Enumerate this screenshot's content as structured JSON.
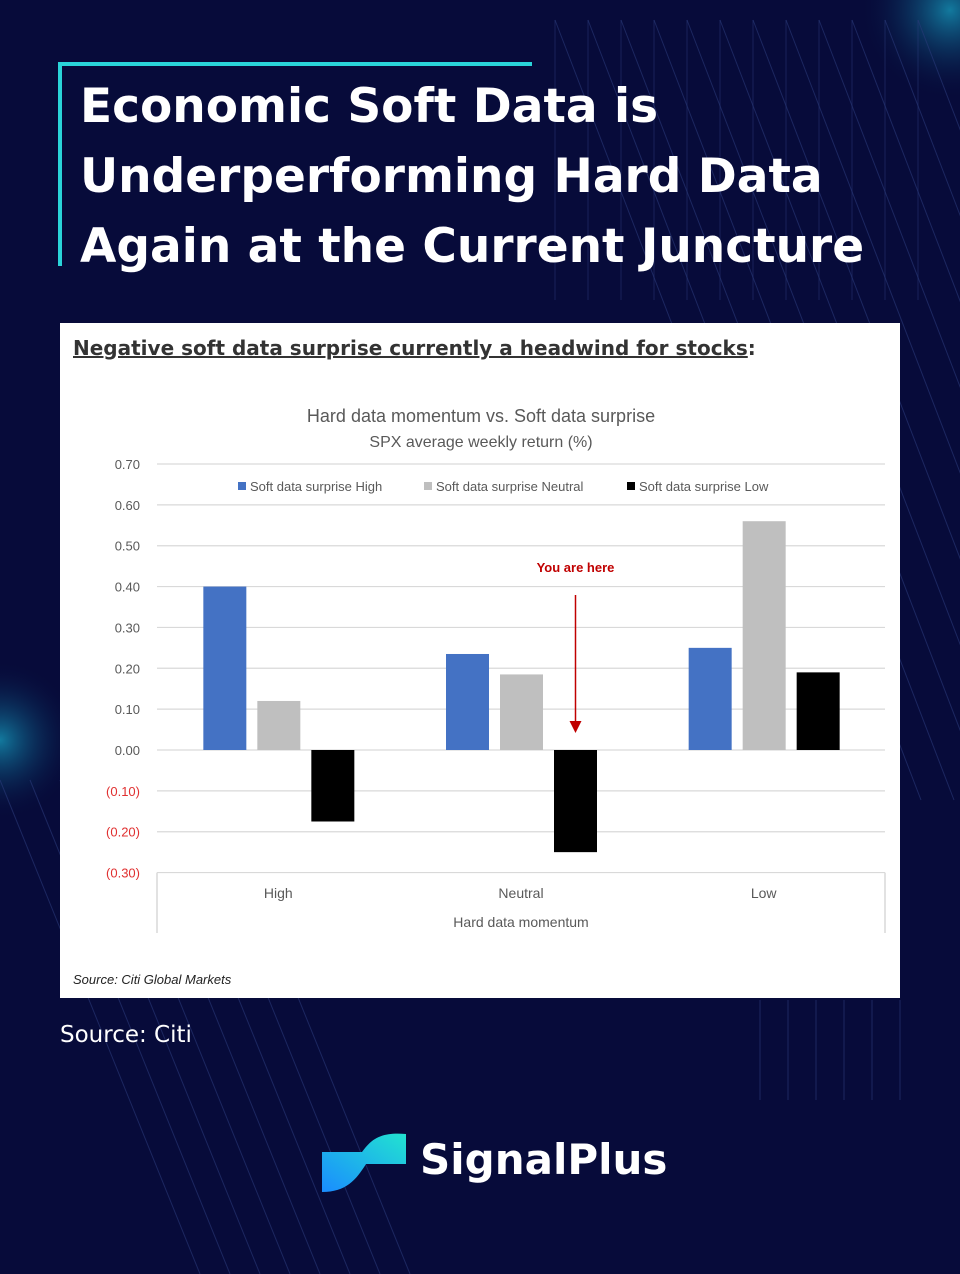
{
  "title": "Economic Soft Data is Underperforming Hard Data Again at the Current Juncture",
  "card": {
    "subheading": "Negative soft data surprise currently a headwind for stocks",
    "subheading_suffix": ":",
    "source": "Source: Citi Global Markets"
  },
  "source": "Source: Citi",
  "brand": "SignalPlus",
  "colors": {
    "background": "#070b3a",
    "accent": "#2ad4d9",
    "negative_tick": "#e03030"
  },
  "chart_data": {
    "type": "bar",
    "title": "Hard data momentum vs. Soft data surprise",
    "subtitle": "SPX average weekly return (%)",
    "xlabel": "Hard data momentum",
    "ylabel": "",
    "categories": [
      "High",
      "Neutral",
      "Low"
    ],
    "series": [
      {
        "name": "Soft data surprise High",
        "color": "#4472c4",
        "values": [
          0.4,
          0.235,
          0.25
        ]
      },
      {
        "name": "Soft data surprise Neutral",
        "color": "#bfbfbf",
        "values": [
          0.12,
          0.185,
          0.56
        ]
      },
      {
        "name": "Soft data surprise Low",
        "color": "#000000",
        "values": [
          -0.175,
          -0.25,
          0.19
        ]
      }
    ],
    "ylim": [
      -0.3,
      0.7
    ],
    "yticks": [
      0.7,
      0.6,
      0.5,
      0.4,
      0.3,
      0.2,
      0.1,
      0.0,
      -0.1,
      -0.2,
      -0.3
    ],
    "ytick_labels": [
      "0.70",
      "0.60",
      "0.50",
      "0.40",
      "0.30",
      "0.20",
      "0.10",
      "0.00",
      "(0.10)",
      "(0.20)",
      "(0.30)"
    ],
    "grid": true,
    "legend": "top",
    "annotation": {
      "text": "You are here",
      "category": "Neutral",
      "series": "Soft data surprise Low",
      "color": "#c00000"
    }
  }
}
